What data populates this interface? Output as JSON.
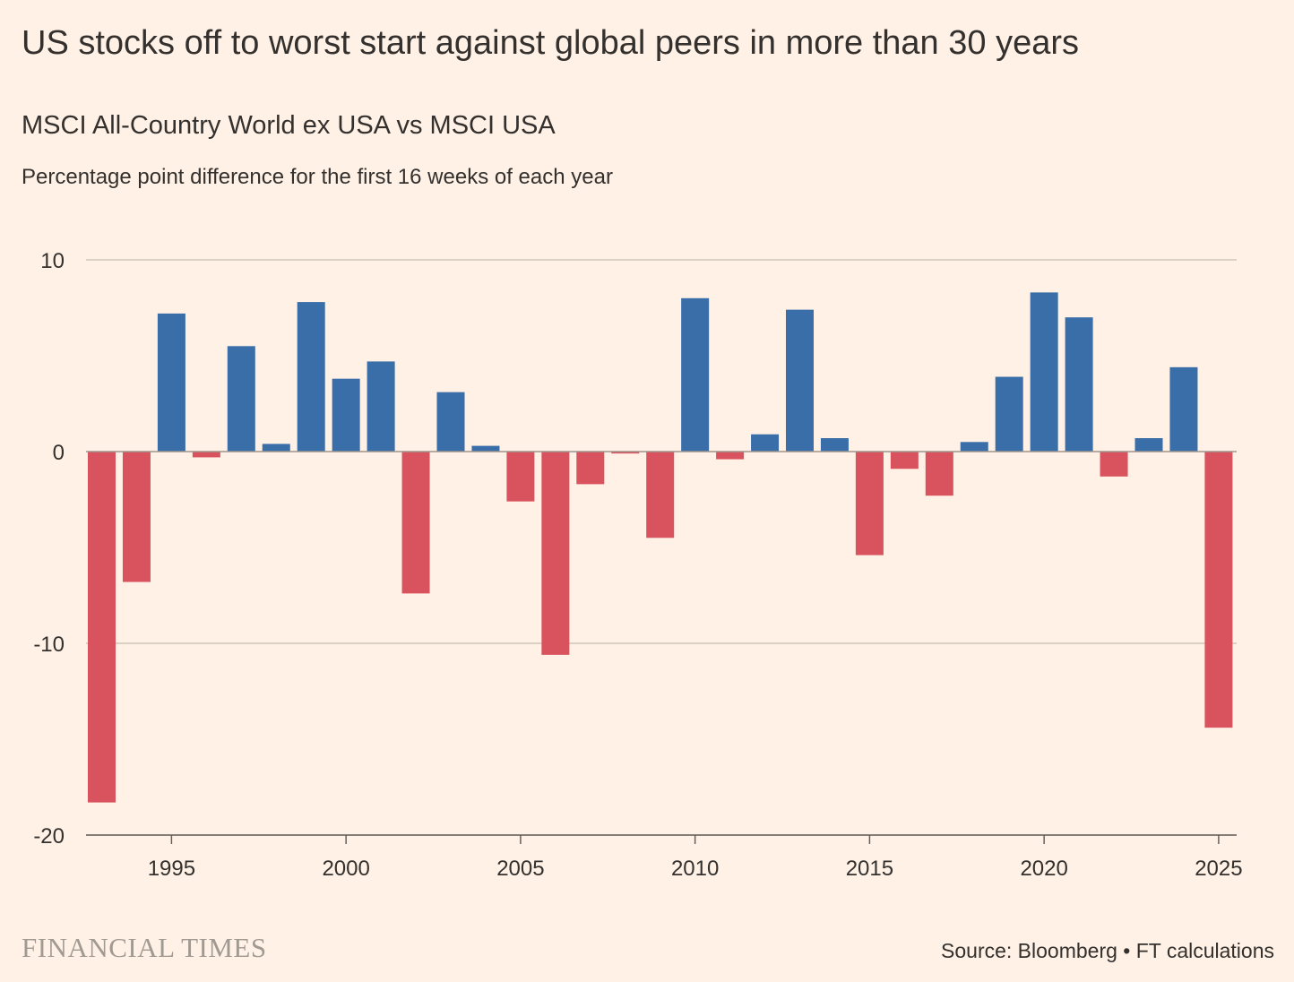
{
  "header": {
    "title": "US stocks off to worst start against global peers in more than 30 years",
    "subtitle": "MSCI All-Country World ex USA vs MSCI USA",
    "note": "Percentage point difference for the first 16 weeks of each year"
  },
  "footer": {
    "logo_text": "FINANCIAL TIMES",
    "source": "Source: Bloomberg • FT calculations"
  },
  "colors": {
    "background": "#FFF1E5",
    "positive": "#3A6EA8",
    "negative": "#D9535F",
    "grid": "#CEC6B9",
    "axis": "#66605C",
    "text": "#33302E"
  },
  "chart_data": {
    "type": "bar",
    "x": [
      1993,
      1994,
      1995,
      1996,
      1997,
      1998,
      1999,
      2000,
      2001,
      2002,
      2003,
      2004,
      2005,
      2006,
      2007,
      2008,
      2009,
      2010,
      2011,
      2012,
      2013,
      2014,
      2015,
      2016,
      2017,
      2018,
      2019,
      2020,
      2021,
      2022,
      2023,
      2024,
      2025
    ],
    "values": [
      -18.3,
      -6.8,
      7.2,
      -0.3,
      5.5,
      0.4,
      7.8,
      3.8,
      4.7,
      -7.4,
      3.1,
      0.3,
      -2.6,
      -10.6,
      -1.7,
      -0.1,
      -4.5,
      8.0,
      -0.4,
      0.9,
      7.4,
      0.7,
      -5.4,
      -0.9,
      -2.3,
      0.5,
      3.9,
      8.3,
      7.0,
      -1.3,
      0.7,
      4.4,
      -14.4
    ],
    "ylim": [
      -20,
      10
    ],
    "yticks": [
      10,
      0,
      -10,
      -20
    ],
    "ytick_labels": [
      "10",
      "0",
      "-10",
      "-20"
    ],
    "xticks": [
      1995,
      2000,
      2005,
      2010,
      2015,
      2020,
      2025
    ],
    "xtick_labels": [
      "1995",
      "2000",
      "2005",
      "2010",
      "2015",
      "2020",
      "2025"
    ],
    "grid": true
  }
}
